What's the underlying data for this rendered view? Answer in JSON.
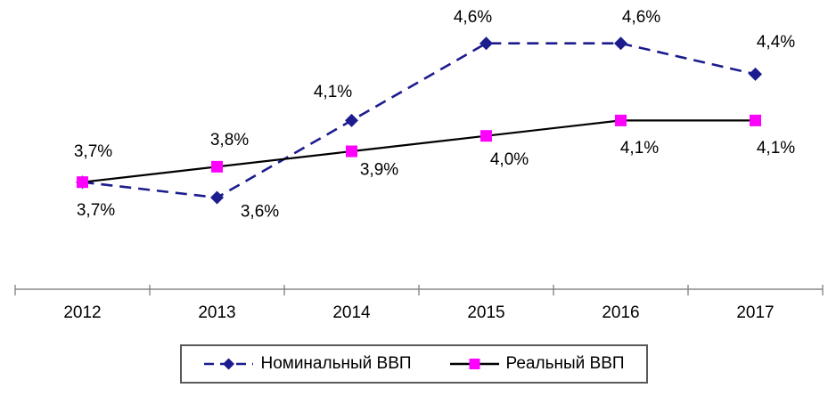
{
  "chart_data": {
    "type": "line",
    "title": "",
    "xlabel": "",
    "ylabel": "",
    "categories": [
      "2012",
      "2013",
      "2014",
      "2015",
      "2016",
      "2017"
    ],
    "series": [
      {
        "name": "Номинальный ВВП",
        "values": [
          3.7,
          3.6,
          4.1,
          4.6,
          4.6,
          4.4
        ],
        "labels": [
          "3,7%",
          "3,6%",
          "4,1%",
          "4,6%",
          "4,6%",
          "4,4%"
        ],
        "color": "#1c1c8f",
        "line_color": "#1c1c8f",
        "line_style": "dashed",
        "marker": "diamond",
        "label_offsets": [
          [
            15,
            31
          ],
          [
            48,
            15
          ],
          [
            -21,
            -33
          ],
          [
            -15,
            -30
          ],
          [
            23,
            -30
          ],
          [
            23,
            -37
          ]
        ]
      },
      {
        "name": "Реальный ВВП",
        "values": [
          3.7,
          3.8,
          3.9,
          4.0,
          4.1,
          4.1
        ],
        "labels": [
          "3,7%",
          "3,8%",
          "3,9%",
          "4,0%",
          "4,1%",
          "4,1%"
        ],
        "color": "#ff00ff",
        "line_color": "#000000",
        "line_style": "solid",
        "marker": "square",
        "label_offsets": [
          [
            12,
            -35
          ],
          [
            14,
            -31
          ],
          [
            31,
            20
          ],
          [
            26,
            26
          ],
          [
            21,
            30
          ],
          [
            23,
            30
          ]
        ]
      }
    ],
    "ylim": [
      3.0,
      4.75
    ],
    "grid": false,
    "legend_position": "bottom",
    "axis_color": "#a6a6a6",
    "tick_color": "#808080",
    "label_color": "#000000"
  }
}
